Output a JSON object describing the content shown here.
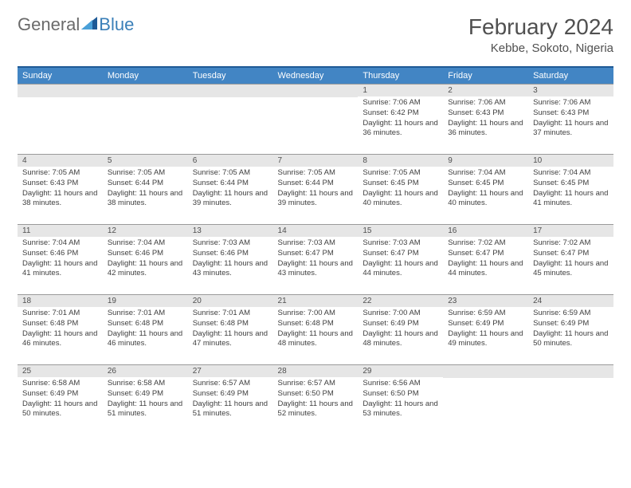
{
  "logo": {
    "text_general": "General",
    "text_blue": "Blue"
  },
  "title": "February 2024",
  "location": "Kebbe, Sokoto, Nigeria",
  "colors": {
    "header_bg": "#4285c4",
    "header_border_top": "#1e5a96",
    "day_header_bg": "#e6e6e6",
    "day_header_border": "#9a9a9a",
    "text": "#404040",
    "title_text": "#505050",
    "logo_gray": "#6a6a6a",
    "logo_blue": "#3a7fb8"
  },
  "weekdays": [
    "Sunday",
    "Monday",
    "Tuesday",
    "Wednesday",
    "Thursday",
    "Friday",
    "Saturday"
  ],
  "weeks": [
    [
      null,
      null,
      null,
      null,
      {
        "num": "1",
        "sunrise": "Sunrise: 7:06 AM",
        "sunset": "Sunset: 6:42 PM",
        "daylight": "Daylight: 11 hours and 36 minutes."
      },
      {
        "num": "2",
        "sunrise": "Sunrise: 7:06 AM",
        "sunset": "Sunset: 6:43 PM",
        "daylight": "Daylight: 11 hours and 36 minutes."
      },
      {
        "num": "3",
        "sunrise": "Sunrise: 7:06 AM",
        "sunset": "Sunset: 6:43 PM",
        "daylight": "Daylight: 11 hours and 37 minutes."
      }
    ],
    [
      {
        "num": "4",
        "sunrise": "Sunrise: 7:05 AM",
        "sunset": "Sunset: 6:43 PM",
        "daylight": "Daylight: 11 hours and 38 minutes."
      },
      {
        "num": "5",
        "sunrise": "Sunrise: 7:05 AM",
        "sunset": "Sunset: 6:44 PM",
        "daylight": "Daylight: 11 hours and 38 minutes."
      },
      {
        "num": "6",
        "sunrise": "Sunrise: 7:05 AM",
        "sunset": "Sunset: 6:44 PM",
        "daylight": "Daylight: 11 hours and 39 minutes."
      },
      {
        "num": "7",
        "sunrise": "Sunrise: 7:05 AM",
        "sunset": "Sunset: 6:44 PM",
        "daylight": "Daylight: 11 hours and 39 minutes."
      },
      {
        "num": "8",
        "sunrise": "Sunrise: 7:05 AM",
        "sunset": "Sunset: 6:45 PM",
        "daylight": "Daylight: 11 hours and 40 minutes."
      },
      {
        "num": "9",
        "sunrise": "Sunrise: 7:04 AM",
        "sunset": "Sunset: 6:45 PM",
        "daylight": "Daylight: 11 hours and 40 minutes."
      },
      {
        "num": "10",
        "sunrise": "Sunrise: 7:04 AM",
        "sunset": "Sunset: 6:45 PM",
        "daylight": "Daylight: 11 hours and 41 minutes."
      }
    ],
    [
      {
        "num": "11",
        "sunrise": "Sunrise: 7:04 AM",
        "sunset": "Sunset: 6:46 PM",
        "daylight": "Daylight: 11 hours and 41 minutes."
      },
      {
        "num": "12",
        "sunrise": "Sunrise: 7:04 AM",
        "sunset": "Sunset: 6:46 PM",
        "daylight": "Daylight: 11 hours and 42 minutes."
      },
      {
        "num": "13",
        "sunrise": "Sunrise: 7:03 AM",
        "sunset": "Sunset: 6:46 PM",
        "daylight": "Daylight: 11 hours and 43 minutes."
      },
      {
        "num": "14",
        "sunrise": "Sunrise: 7:03 AM",
        "sunset": "Sunset: 6:47 PM",
        "daylight": "Daylight: 11 hours and 43 minutes."
      },
      {
        "num": "15",
        "sunrise": "Sunrise: 7:03 AM",
        "sunset": "Sunset: 6:47 PM",
        "daylight": "Daylight: 11 hours and 44 minutes."
      },
      {
        "num": "16",
        "sunrise": "Sunrise: 7:02 AM",
        "sunset": "Sunset: 6:47 PM",
        "daylight": "Daylight: 11 hours and 44 minutes."
      },
      {
        "num": "17",
        "sunrise": "Sunrise: 7:02 AM",
        "sunset": "Sunset: 6:47 PM",
        "daylight": "Daylight: 11 hours and 45 minutes."
      }
    ],
    [
      {
        "num": "18",
        "sunrise": "Sunrise: 7:01 AM",
        "sunset": "Sunset: 6:48 PM",
        "daylight": "Daylight: 11 hours and 46 minutes."
      },
      {
        "num": "19",
        "sunrise": "Sunrise: 7:01 AM",
        "sunset": "Sunset: 6:48 PM",
        "daylight": "Daylight: 11 hours and 46 minutes."
      },
      {
        "num": "20",
        "sunrise": "Sunrise: 7:01 AM",
        "sunset": "Sunset: 6:48 PM",
        "daylight": "Daylight: 11 hours and 47 minutes."
      },
      {
        "num": "21",
        "sunrise": "Sunrise: 7:00 AM",
        "sunset": "Sunset: 6:48 PM",
        "daylight": "Daylight: 11 hours and 48 minutes."
      },
      {
        "num": "22",
        "sunrise": "Sunrise: 7:00 AM",
        "sunset": "Sunset: 6:49 PM",
        "daylight": "Daylight: 11 hours and 48 minutes."
      },
      {
        "num": "23",
        "sunrise": "Sunrise: 6:59 AM",
        "sunset": "Sunset: 6:49 PM",
        "daylight": "Daylight: 11 hours and 49 minutes."
      },
      {
        "num": "24",
        "sunrise": "Sunrise: 6:59 AM",
        "sunset": "Sunset: 6:49 PM",
        "daylight": "Daylight: 11 hours and 50 minutes."
      }
    ],
    [
      {
        "num": "25",
        "sunrise": "Sunrise: 6:58 AM",
        "sunset": "Sunset: 6:49 PM",
        "daylight": "Daylight: 11 hours and 50 minutes."
      },
      {
        "num": "26",
        "sunrise": "Sunrise: 6:58 AM",
        "sunset": "Sunset: 6:49 PM",
        "daylight": "Daylight: 11 hours and 51 minutes."
      },
      {
        "num": "27",
        "sunrise": "Sunrise: 6:57 AM",
        "sunset": "Sunset: 6:49 PM",
        "daylight": "Daylight: 11 hours and 51 minutes."
      },
      {
        "num": "28",
        "sunrise": "Sunrise: 6:57 AM",
        "sunset": "Sunset: 6:50 PM",
        "daylight": "Daylight: 11 hours and 52 minutes."
      },
      {
        "num": "29",
        "sunrise": "Sunrise: 6:56 AM",
        "sunset": "Sunset: 6:50 PM",
        "daylight": "Daylight: 11 hours and 53 minutes."
      },
      null,
      null
    ]
  ]
}
